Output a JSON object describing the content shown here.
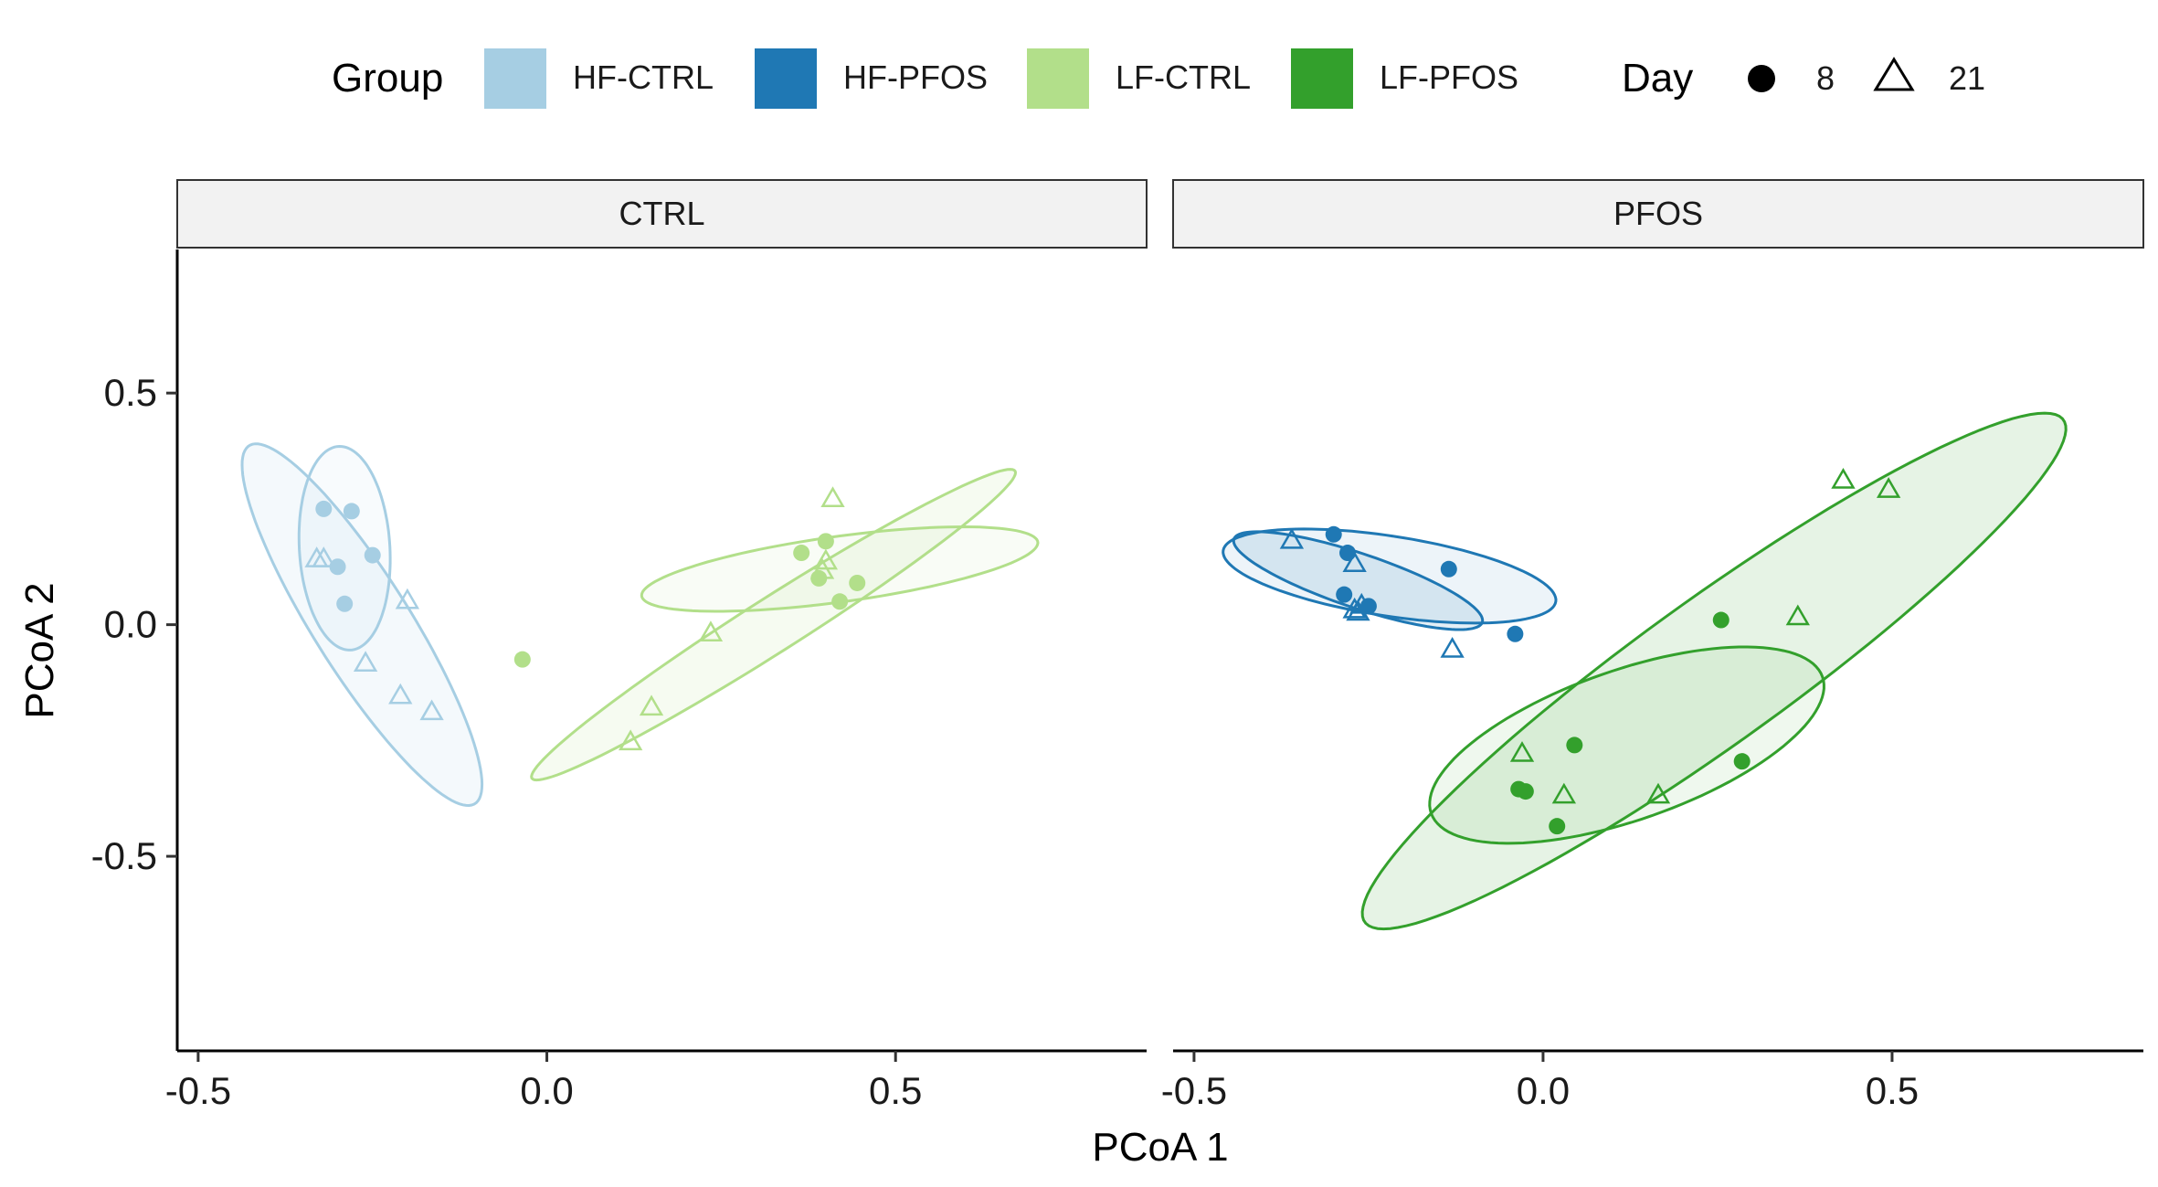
{
  "chart_data": {
    "type": "scatter",
    "xlabel": "PCoA 1",
    "ylabel": "PCoA 2",
    "xlim": [
      -0.53,
      0.86
    ],
    "ylim": [
      -0.92,
      0.81
    ],
    "x_ticks": [
      -0.5,
      0.0,
      0.5
    ],
    "x_tick_labels": [
      "-0.5",
      "0.0",
      "0.5"
    ],
    "y_ticks": [
      -0.5,
      0.0,
      0.5
    ],
    "y_tick_labels": [
      "-0.5",
      "0.0",
      "0.5"
    ],
    "grid": false,
    "legend_placement": "top",
    "legend": {
      "group_title": "Group",
      "groups": [
        {
          "name": "HF-CTRL",
          "color": "#a6cee3"
        },
        {
          "name": "HF-PFOS",
          "color": "#1f78b4"
        },
        {
          "name": "LF-CTRL",
          "color": "#b2df8a"
        },
        {
          "name": "LF-PFOS",
          "color": "#33a02c"
        }
      ],
      "day_title": "Day",
      "days": [
        {
          "label": "8",
          "shape": "circle"
        },
        {
          "label": "21",
          "shape": "triangle"
        }
      ]
    },
    "panels": [
      {
        "name": "CTRL",
        "series": [
          {
            "name": "HF-CTRL",
            "color": "#a6cee3",
            "points": [
              {
                "x": -0.32,
                "y": 0.25,
                "day": "8"
              },
              {
                "x": -0.28,
                "y": 0.245,
                "day": "8"
              },
              {
                "x": -0.25,
                "y": 0.15,
                "day": "8"
              },
              {
                "x": -0.3,
                "y": 0.125,
                "day": "8"
              },
              {
                "x": -0.29,
                "y": 0.045,
                "day": "8"
              },
              {
                "x": -0.33,
                "y": 0.14,
                "day": "21"
              },
              {
                "x": -0.32,
                "y": 0.14,
                "day": "21"
              },
              {
                "x": -0.2,
                "y": 0.05,
                "day": "21"
              },
              {
                "x": -0.26,
                "y": -0.085,
                "day": "21"
              },
              {
                "x": -0.21,
                "y": -0.155,
                "day": "21"
              },
              {
                "x": -0.165,
                "y": -0.19,
                "day": "21"
              }
            ],
            "ellipses": [
              {
                "type": "t",
                "cx": -0.265,
                "cy": 0.0,
                "a": 0.42,
                "b": 0.075,
                "angle": -68,
                "day": "21"
              },
              {
                "type": "t",
                "cx": -0.29,
                "cy": 0.165,
                "a": 0.22,
                "b": 0.065,
                "angle": -88,
                "day": "8"
              }
            ]
          },
          {
            "name": "LF-CTRL",
            "color": "#b2df8a",
            "points": [
              {
                "x": -0.035,
                "y": -0.075,
                "day": "8"
              },
              {
                "x": 0.365,
                "y": 0.155,
                "day": "8"
              },
              {
                "x": 0.4,
                "y": 0.18,
                "day": "8"
              },
              {
                "x": 0.39,
                "y": 0.1,
                "day": "8"
              },
              {
                "x": 0.445,
                "y": 0.09,
                "day": "8"
              },
              {
                "x": 0.42,
                "y": 0.05,
                "day": "8"
              },
              {
                "x": 0.41,
                "y": 0.27,
                "day": "21"
              },
              {
                "x": 0.4,
                "y": 0.135,
                "day": "21"
              },
              {
                "x": 0.395,
                "y": 0.115,
                "day": "21"
              },
              {
                "x": 0.235,
                "y": -0.02,
                "day": "21"
              },
              {
                "x": 0.15,
                "y": -0.18,
                "day": "21"
              },
              {
                "x": 0.12,
                "y": -0.255,
                "day": "21"
              }
            ],
            "ellipses": [
              {
                "type": "t",
                "cx": 0.325,
                "cy": 0.0,
                "a": 0.48,
                "b": 0.05,
                "angle": 44,
                "day": "21"
              },
              {
                "type": "t",
                "cx": 0.42,
                "cy": 0.12,
                "a": 0.29,
                "b": 0.07,
                "angle": 12,
                "day": "8"
              }
            ]
          }
        ]
      },
      {
        "name": "PFOS",
        "series": [
          {
            "name": "HF-PFOS",
            "color": "#1f78b4",
            "points": [
              {
                "x": -0.3,
                "y": 0.195,
                "day": "8"
              },
              {
                "x": -0.28,
                "y": 0.155,
                "day": "8"
              },
              {
                "x": -0.285,
                "y": 0.065,
                "day": "8"
              },
              {
                "x": -0.25,
                "y": 0.04,
                "day": "8"
              },
              {
                "x": -0.135,
                "y": 0.12,
                "day": "8"
              },
              {
                "x": -0.04,
                "y": -0.02,
                "day": "8"
              },
              {
                "x": -0.36,
                "y": 0.18,
                "day": "21"
              },
              {
                "x": -0.27,
                "y": 0.13,
                "day": "21"
              },
              {
                "x": -0.26,
                "y": 0.04,
                "day": "21"
              },
              {
                "x": -0.27,
                "y": 0.03,
                "day": "21"
              },
              {
                "x": -0.265,
                "y": 0.025,
                "day": "21"
              },
              {
                "x": -0.13,
                "y": -0.055,
                "day": "21"
              }
            ],
            "ellipses": [
              {
                "type": "t",
                "cx": -0.265,
                "cy": 0.095,
                "a": 0.2,
                "b": 0.055,
                "angle": -28,
                "day": "21"
              },
              {
                "type": "t",
                "cx": -0.22,
                "cy": 0.105,
                "a": 0.245,
                "b": 0.085,
                "angle": -14,
                "day": "8"
              }
            ]
          },
          {
            "name": "LF-PFOS",
            "color": "#33a02c",
            "points": [
              {
                "x": 0.255,
                "y": 0.01,
                "day": "8"
              },
              {
                "x": 0.045,
                "y": -0.26,
                "day": "8"
              },
              {
                "x": 0.285,
                "y": -0.295,
                "day": "8"
              },
              {
                "x": -0.035,
                "y": -0.355,
                "day": "8"
              },
              {
                "x": -0.025,
                "y": -0.36,
                "day": "8"
              },
              {
                "x": 0.02,
                "y": -0.435,
                "day": "8"
              },
              {
                "x": 0.43,
                "y": 0.31,
                "day": "21"
              },
              {
                "x": 0.495,
                "y": 0.29,
                "day": "21"
              },
              {
                "x": 0.365,
                "y": 0.015,
                "day": "21"
              },
              {
                "x": -0.03,
                "y": -0.28,
                "day": "21"
              },
              {
                "x": 0.03,
                "y": -0.37,
                "day": "21"
              },
              {
                "x": 0.165,
                "y": -0.37,
                "day": "21"
              }
            ],
            "ellipses": [
              {
                "type": "t",
                "cx": 0.245,
                "cy": -0.1,
                "a": 0.74,
                "b": 0.13,
                "angle": 48,
                "day": "21"
              },
              {
                "type": "t",
                "cx": 0.12,
                "cy": -0.26,
                "a": 0.32,
                "b": 0.15,
                "angle": 32,
                "day": "8"
              }
            ]
          }
        ]
      }
    ]
  }
}
